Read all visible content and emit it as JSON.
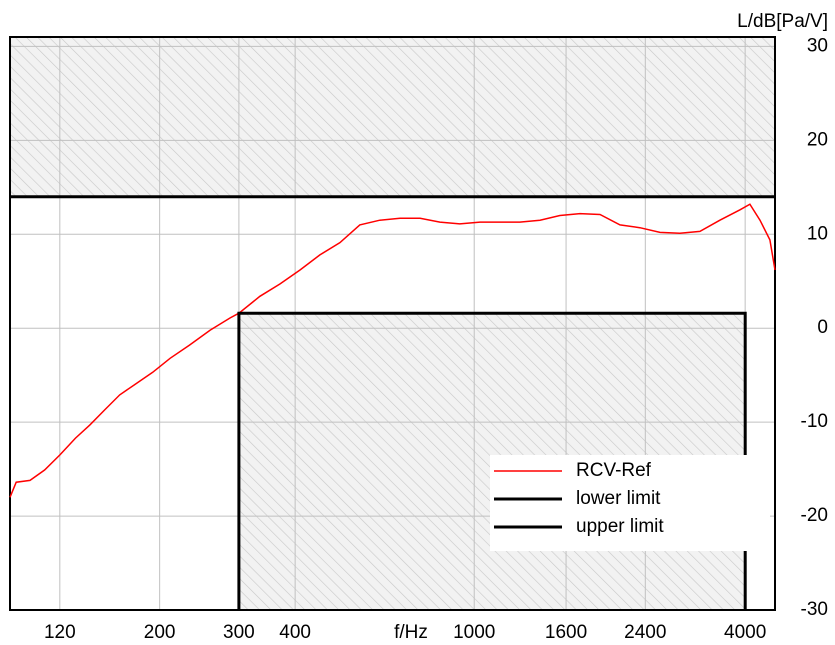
{
  "chart_data": {
    "type": "line",
    "x_label": "f/Hz",
    "y_label": "L/dB[Pa/V]",
    "xscale": "log",
    "xlim": [
      93,
      4660
    ],
    "xticks": [
      120,
      200,
      300,
      400,
      1000,
      1600,
      2400,
      4000
    ],
    "ylim": [
      -30,
      31
    ],
    "yticks": [
      30,
      20,
      10,
      0,
      -10,
      -20,
      -30
    ],
    "grid": true,
    "legend": "lower right",
    "series": [
      {
        "name": "RCV-Ref",
        "color": "#ff0000",
        "x": [
          93,
          96,
          103,
          111,
          120,
          130,
          140,
          151,
          163,
          176,
          193,
          211,
          233,
          259,
          287,
          300,
          334,
          370,
          410,
          454,
          503,
          557,
          617,
          684,
          758,
          839,
          929,
          1030,
          1141,
          1263,
          1400,
          1550,
          1718,
          1903,
          2108,
          2335,
          2587,
          2865,
          3174,
          3516,
          3895,
          4099,
          4315,
          4541,
          4660
        ],
        "values": [
          -18,
          -16.4,
          -16.2,
          -15.1,
          -13.5,
          -11.7,
          -10.3,
          -8.7,
          -7.1,
          -6.0,
          -4.7,
          -3.2,
          -1.8,
          -0.2,
          1.1,
          1.6,
          3.4,
          4.7,
          6.2,
          7.8,
          9.1,
          11.0,
          11.5,
          11.7,
          11.7,
          11.3,
          11.1,
          11.3,
          11.3,
          11.3,
          11.5,
          12.0,
          12.2,
          12.1,
          11.0,
          10.7,
          10.2,
          10.1,
          10.3,
          11.5,
          12.6,
          13.2,
          11.5,
          9.4,
          6.2
        ]
      },
      {
        "name": "lower limit",
        "color": "#000000",
        "fill": "below",
        "x": [
          300,
          300,
          4000,
          4000
        ],
        "values": [
          -30,
          1.6,
          1.6,
          -30
        ]
      },
      {
        "name": "upper limit",
        "color": "#000000",
        "fill": "above",
        "x": [
          93,
          4660
        ],
        "values": [
          14,
          14
        ]
      }
    ]
  }
}
